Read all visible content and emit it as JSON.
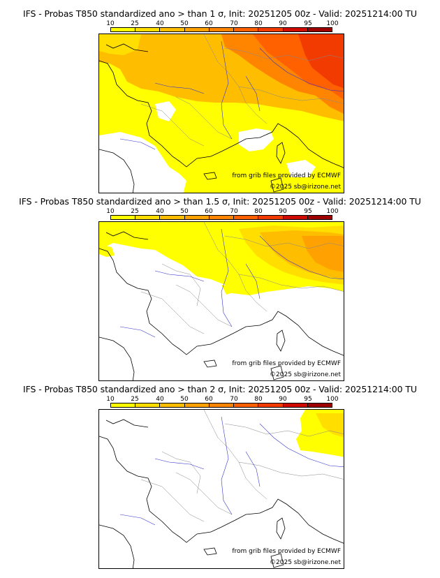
{
  "legend": {
    "ticks": [
      "10",
      "25",
      "40",
      "50",
      "60",
      "70",
      "80",
      "90",
      "95",
      "100"
    ],
    "colors": [
      "#ffff00",
      "#ffde00",
      "#ffbd00",
      "#ffa100",
      "#ff8400",
      "#ff6100",
      "#f23b00",
      "#cf0a00",
      "#9e0000",
      "#660000"
    ]
  },
  "panels": [
    {
      "title": "IFS - Probas T850  standardized ano > than 1 σ, Init: 20251205 00z - Valid: 20251214:00 TU",
      "threshold": "1 σ",
      "credit_source": "from grib files provided by ECMWF",
      "credit_copyright": "©2025 sb@irizone.net"
    },
    {
      "title": "IFS - Probas T850  standardized ano > than 1.5 σ, Init: 20251205 00z - Valid: 20251214:00 TU",
      "threshold": "1.5 σ",
      "credit_source": "from grib files provided by ECMWF",
      "credit_copyright": "©2025 sb@irizone.net"
    },
    {
      "title": "IFS - Probas T850  standardized ano > than 2 σ, Init: 20251205 00z - Valid: 20251214:00 TU",
      "threshold": "2 σ",
      "credit_source": "from grib files provided by ECMWF",
      "credit_copyright": "©2025 sb@irizone.net"
    }
  ]
}
